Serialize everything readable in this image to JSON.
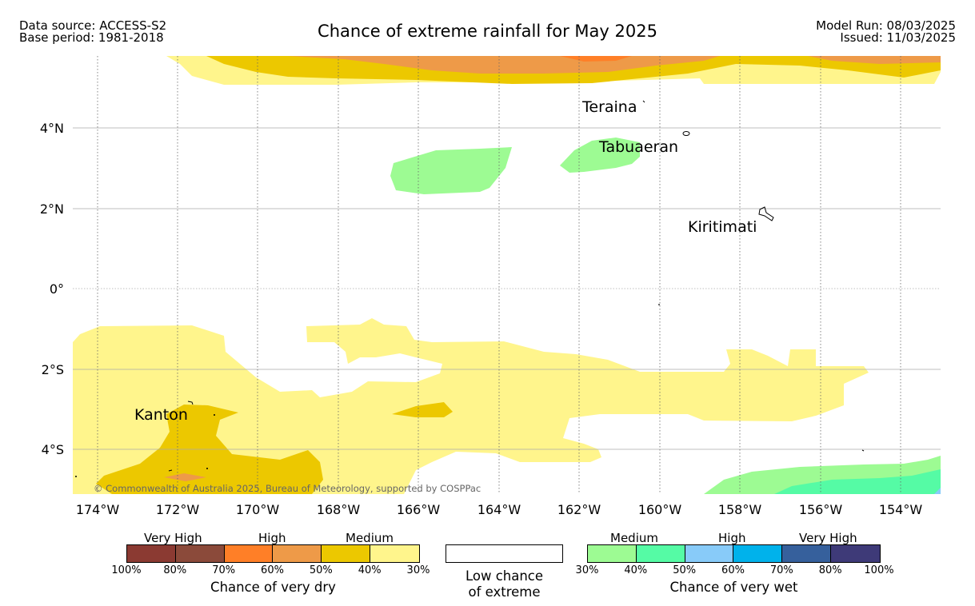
{
  "header": {
    "data_source": "Data source: ACCESS-S2",
    "base_period": "Base period: 1981-2018",
    "title": "Chance of extreme rainfall for May 2025",
    "model_run": "Model Run: 08/03/2025",
    "issued": "Issued: 11/03/2025"
  },
  "map": {
    "lat_labels": [
      "4°N",
      "2°N",
      "0°",
      "2°S",
      "4°S"
    ],
    "lon_labels": [
      "174°W",
      "172°W",
      "170°W",
      "168°W",
      "166°W",
      "164°W",
      "162°W",
      "160°W",
      "158°W",
      "156°W",
      "154°W"
    ],
    "places": [
      "Teraina",
      "Tabuaeran",
      "Kiritimati",
      "Kanton"
    ],
    "copyright": "© Commonwealth of Australia 2025, Bureau of Meteorology, supported by COSPPac"
  },
  "legend": {
    "dry": {
      "groups": [
        "Very High",
        "High",
        "Medium"
      ],
      "ticks": [
        "100%",
        "80%",
        "70%",
        "60%",
        "50%",
        "40%",
        "30%"
      ],
      "colors": [
        "#8b3a32",
        "#8b4a3a",
        "#ff7f27",
        "#ee9a48",
        "#ecc800",
        "#fff58c"
      ],
      "caption": "Chance of very dry"
    },
    "low": {
      "caption_line1": "Low chance",
      "caption_line2": "of extreme",
      "color": "#ffffff"
    },
    "wet": {
      "groups": [
        "Medium",
        "High",
        "Very High"
      ],
      "ticks": [
        "30%",
        "40%",
        "50%",
        "60%",
        "70%",
        "80%",
        "100%"
      ],
      "colors": [
        "#9dfb93",
        "#55fba5",
        "#88cbf9",
        "#00b2eb",
        "#36609c",
        "#3e3a78"
      ],
      "caption": "Chance of very wet"
    }
  }
}
